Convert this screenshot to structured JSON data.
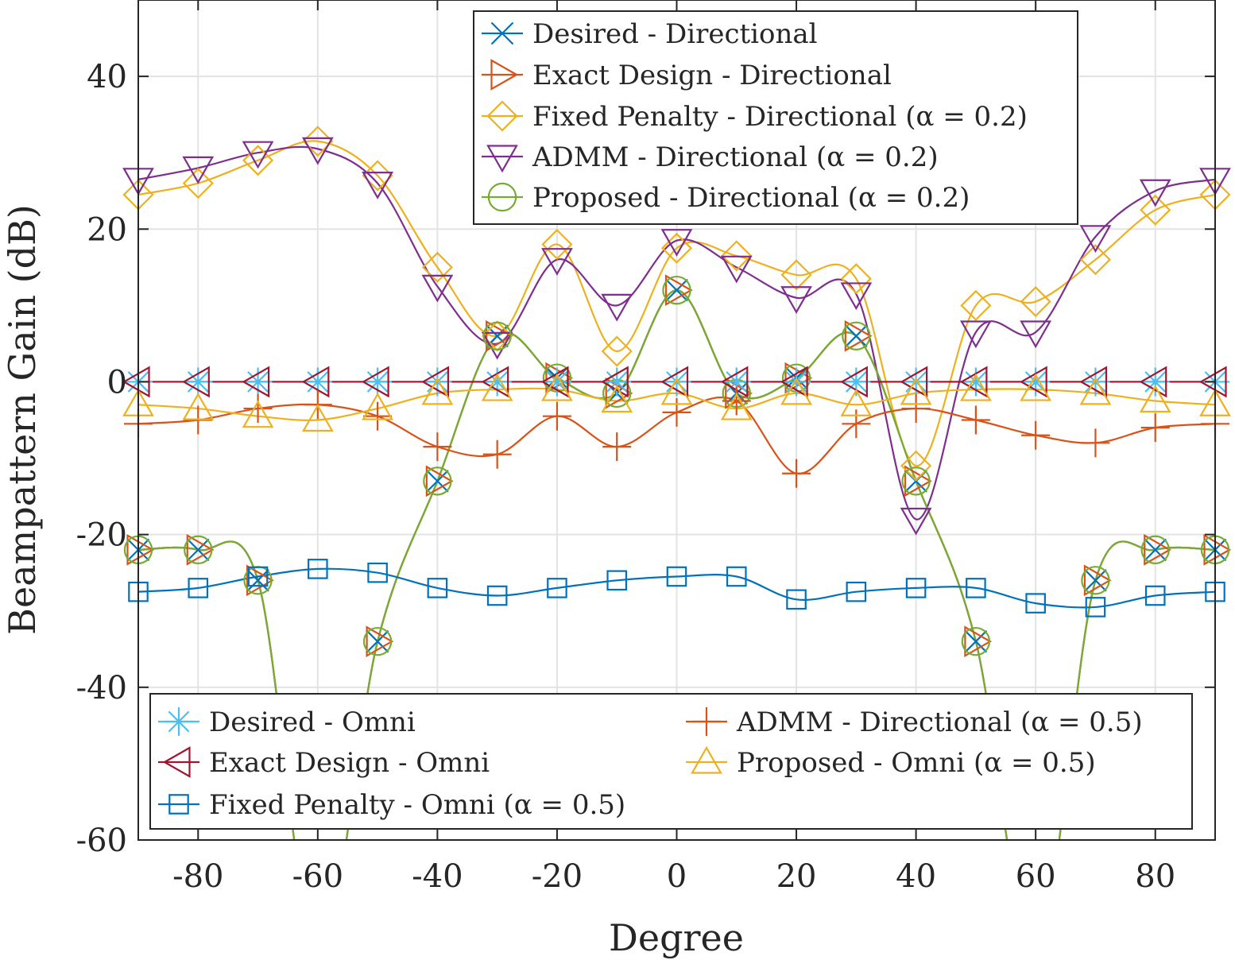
{
  "chart_data": {
    "type": "line",
    "xlabel": "Degree",
    "ylabel": "Beampattern Gain (dB)",
    "xlim": [
      -90,
      90
    ],
    "ylim": [
      -60,
      50
    ],
    "xticks": [
      -80,
      -60,
      -40,
      -20,
      0,
      20,
      40,
      60,
      80
    ],
    "yticks": [
      -60,
      -40,
      -20,
      0,
      20,
      40
    ],
    "xtick_labels": [
      "-80",
      "-60",
      "-40",
      "-20",
      "0",
      "20",
      "40",
      "60",
      "80"
    ],
    "ytick_labels": [
      "-60",
      "-40",
      "-20",
      "0",
      "20",
      "40"
    ],
    "grid": true,
    "marker_x": [
      -90,
      -80,
      -70,
      -60,
      -50,
      -40,
      -30,
      -20,
      -10,
      0,
      10,
      20,
      30,
      40,
      50,
      60,
      70,
      80,
      90
    ],
    "series": [
      {
        "id": "desired-dir",
        "name": "Desired - Directional",
        "color": "#0072BD",
        "marker": "x",
        "values": [
          -22,
          -22,
          -26,
          null,
          -34,
          -13,
          6,
          0.5,
          -1.5,
          12,
          -1.5,
          0.5,
          6,
          -13,
          -34,
          null,
          -26,
          -22,
          -22
        ]
      },
      {
        "id": "exact-dir",
        "name": "Exact Design - Directional",
        "color": "#D95319",
        "marker": "triangle-right",
        "values": [
          -22,
          -22,
          -26,
          null,
          -34,
          -13,
          6,
          0.5,
          -1.5,
          12,
          -1.5,
          0.5,
          6,
          -13,
          -34,
          null,
          -26,
          -22,
          -22
        ]
      },
      {
        "id": "fixed-dir",
        "name": "Fixed Penalty - Directional (α = 0.2)",
        "color": "#EDB120",
        "marker": "diamond",
        "values": [
          24.5,
          26,
          29,
          31.5,
          27,
          15,
          6,
          18,
          4,
          17.5,
          16.5,
          14,
          13.5,
          -11,
          10,
          10.5,
          16,
          22.5,
          24.5
        ]
      },
      {
        "id": "admm-dir",
        "name": "ADMM - Directional (α = 0.2)",
        "color": "#7E2F8E",
        "marker": "triangle-down",
        "values": [
          26.5,
          28,
          30,
          30.5,
          26,
          12.5,
          5,
          16,
          10,
          18.5,
          15,
          11,
          11.5,
          -18,
          6.5,
          6.5,
          19,
          25,
          26.5
        ]
      },
      {
        "id": "proposed-dir",
        "name": "Proposed - Directional (α = 0.2)",
        "color": "#77AC30",
        "marker": "circle",
        "values": [
          -22,
          -22,
          -26,
          null,
          -34,
          -13,
          6,
          0.5,
          -1.5,
          12,
          -1.5,
          0.5,
          6,
          -13,
          -34,
          null,
          -26,
          -22,
          -22
        ]
      },
      {
        "id": "desired-omni",
        "name": "Desired - Omni",
        "color": "#4DBEEE",
        "marker": "asterisk",
        "values": [
          0,
          0,
          0,
          0,
          0,
          0,
          0,
          0,
          0,
          0,
          0,
          0,
          0,
          0,
          0,
          0,
          0,
          0,
          0
        ]
      },
      {
        "id": "exact-omni",
        "name": "Exact Design - Omni",
        "color": "#A2142F",
        "marker": "triangle-left",
        "values": [
          0,
          0,
          0,
          0,
          0,
          0,
          0,
          0,
          0,
          0,
          0,
          0,
          0,
          0,
          0,
          0,
          0,
          0,
          0
        ]
      },
      {
        "id": "fixed-omni",
        "name": "Fixed Penalty - Omni (α = 0.5)",
        "color": "#0072BD",
        "marker": "square",
        "values": [
          -27.5,
          -27,
          -25.5,
          -24.5,
          -25,
          -27,
          -28,
          -27,
          -26,
          -25.5,
          -25.5,
          -28.5,
          -27.5,
          -27,
          -27,
          -29,
          -29.5,
          -28,
          -27.5
        ]
      },
      {
        "id": "admm-omni",
        "name": "ADMM - Directional (α = 0.5)",
        "color": "#D95319",
        "marker": "plus",
        "values": [
          -5.5,
          -5,
          -3.5,
          -3,
          -4.5,
          -8.5,
          -9.5,
          -4.5,
          -8.5,
          -4,
          -2.5,
          -12,
          -5.5,
          -3.5,
          -5,
          -7,
          -8,
          -6,
          -5.5
        ]
      },
      {
        "id": "proposed-omni",
        "name": "Proposed - Omni (α = 0.5)",
        "color": "#EDB120",
        "marker": "triangle-up",
        "values": [
          -3,
          -3.5,
          -4.5,
          -5,
          -3.5,
          -1.5,
          -1,
          -1,
          -2.5,
          -1.5,
          -3.5,
          -1.5,
          -3,
          -1.5,
          -1,
          -1,
          -1.5,
          -2.5,
          -3
        ]
      }
    ],
    "legend_top": {
      "position": "top-center",
      "entries": [
        "Desired - Directional",
        "Exact Design - Directional",
        "Fixed Penalty - Directional (α = 0.2)",
        "ADMM - Directional (α = 0.2)",
        "Proposed - Directional (α = 0.2)"
      ]
    },
    "legend_bottom": {
      "position": "bottom",
      "entries": [
        "Desired - Omni",
        "Exact Design - Omni",
        "Fixed Penalty - Omni (α = 0.5)",
        "ADMM - Directional (α = 0.5)",
        "Proposed - Omni (α = 0.5)"
      ]
    }
  }
}
